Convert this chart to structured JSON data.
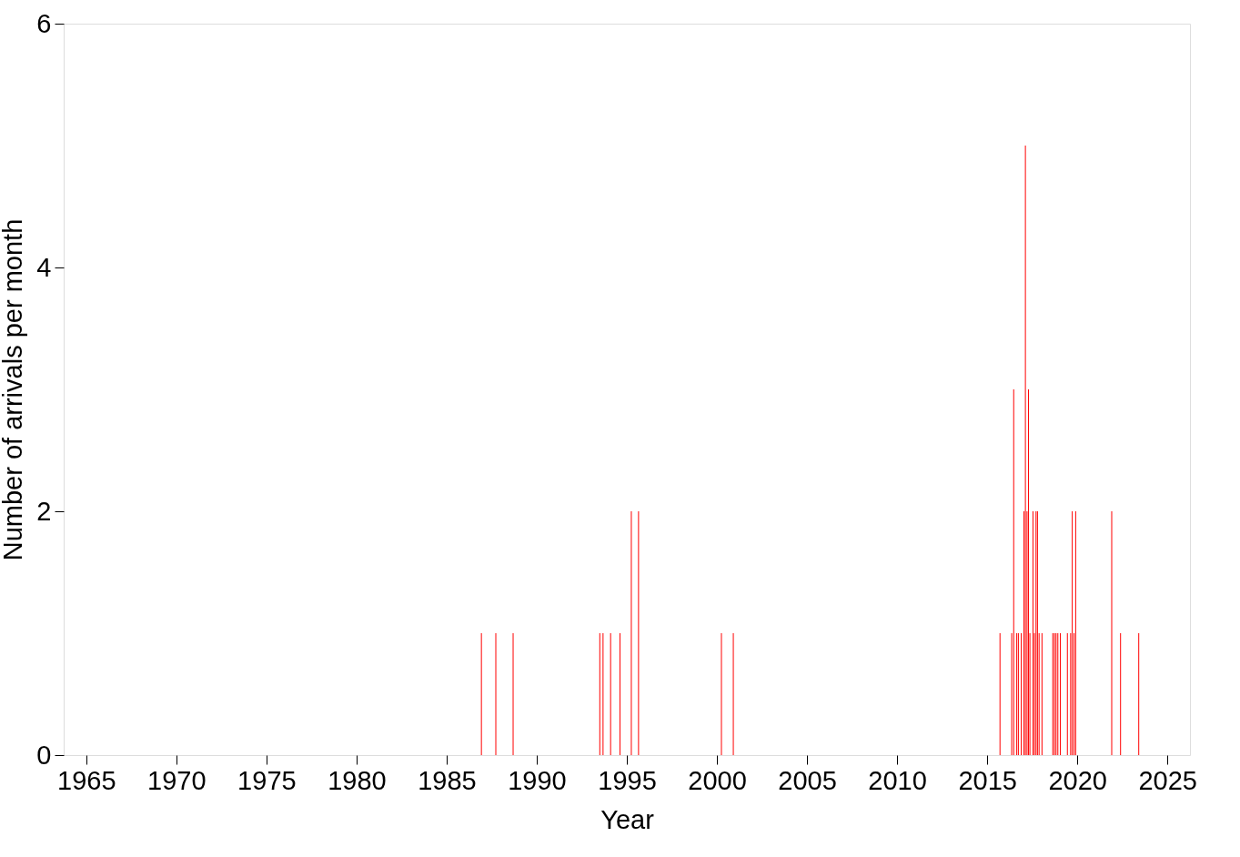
{
  "chart_data": {
    "type": "bar",
    "xlabel": "Year",
    "ylabel": "Number of arrivals per month",
    "x": [
      1986.93,
      1987.73,
      1988.69,
      1993.5,
      1993.68,
      1994.1,
      1994.62,
      1995.25,
      1995.65,
      2000.25,
      2000.91,
      2015.71,
      2016.36,
      2016.47,
      2016.64,
      2016.73,
      2016.89,
      2017.04,
      2017.12,
      2017.21,
      2017.29,
      2017.37,
      2017.54,
      2017.62,
      2017.71,
      2017.79,
      2017.88,
      2018.04,
      2018.64,
      2018.73,
      2018.82,
      2018.92,
      2019.06,
      2019.45,
      2019.63,
      2019.72,
      2019.82,
      2019.91,
      2021.91,
      2022.4,
      2023.41
    ],
    "values": [
      1,
      1,
      1,
      1,
      1,
      1,
      1,
      2,
      2,
      1,
      1,
      1,
      1,
      3,
      1,
      1,
      1,
      2,
      5,
      2,
      3,
      1,
      2,
      1,
      2,
      2,
      1,
      1,
      1,
      1,
      1,
      1,
      1,
      1,
      1,
      2,
      1,
      2,
      2,
      1,
      1
    ],
    "color": "#ff0000",
    "xlim": [
      1964,
      2026
    ],
    "xticks": [
      1965,
      1970,
      1975,
      1980,
      1985,
      1990,
      1995,
      2000,
      2005,
      2010,
      2015,
      2020,
      2025
    ],
    "ylim": [
      0,
      6
    ],
    "yticks": [
      0,
      2,
      4,
      6
    ],
    "grid": false
  }
}
